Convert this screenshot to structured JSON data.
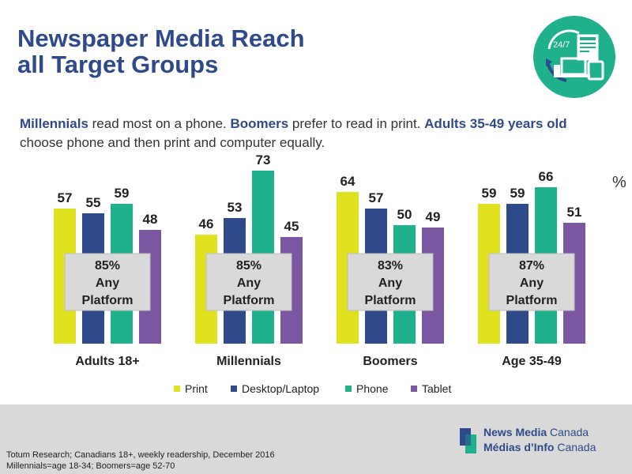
{
  "title": {
    "line1": "Newspaper Media Reach",
    "line2": "all Target Groups"
  },
  "badge": {
    "text": "24/7"
  },
  "subtitle": {
    "part1_bold": "Millennials",
    "part1": " read most on a phone. ",
    "part2_bold": "Boomers",
    "part2": " prefer to read in print.  ",
    "part3_bold": "Adults 35-49 years old",
    "part3": " choose phone and then print and computer equally."
  },
  "unit_label": "%",
  "chart_data": {
    "type": "bar",
    "categories": [
      "Adults 18+",
      "Millennials",
      "Boomers",
      "Age 35-49"
    ],
    "series": [
      {
        "name": "Print",
        "color": "#e0e21f",
        "values": [
          57,
          46,
          64,
          59
        ]
      },
      {
        "name": "Desktop/Laptop",
        "color": "#2e4a8b",
        "values": [
          55,
          53,
          57,
          59
        ]
      },
      {
        "name": "Phone",
        "color": "#1fb08c",
        "values": [
          59,
          73,
          50,
          66
        ]
      },
      {
        "name": "Tablet",
        "color": "#7b56a1",
        "values": [
          48,
          45,
          49,
          51
        ]
      }
    ],
    "any_platform": [
      {
        "pct": "85%",
        "line2": "Any",
        "line3": "Platform"
      },
      {
        "pct": "85%",
        "line2": "Any",
        "line3": "Platform"
      },
      {
        "pct": "83%",
        "line2": "Any",
        "line3": "Platform"
      },
      {
        "pct": "87%",
        "line2": "Any",
        "line3": "Platform"
      }
    ],
    "ylim": [
      0,
      80
    ],
    "legend_position": "bottom"
  },
  "footer": {
    "source_line1": "Totum Research; Canadians 18+, weekly readership, December 2016",
    "source_line2": "Millennials=age  18-34; Boomers=age 52-70",
    "logo_line1_bold": "News Media",
    "logo_line1": " Canada",
    "logo_line2_bold": "Médias d’Info",
    "logo_line2": " Canada"
  },
  "colors": {
    "title": "#2e4a8b",
    "badge": "#1fb08c",
    "footer_bg": "#d9d9d9"
  }
}
